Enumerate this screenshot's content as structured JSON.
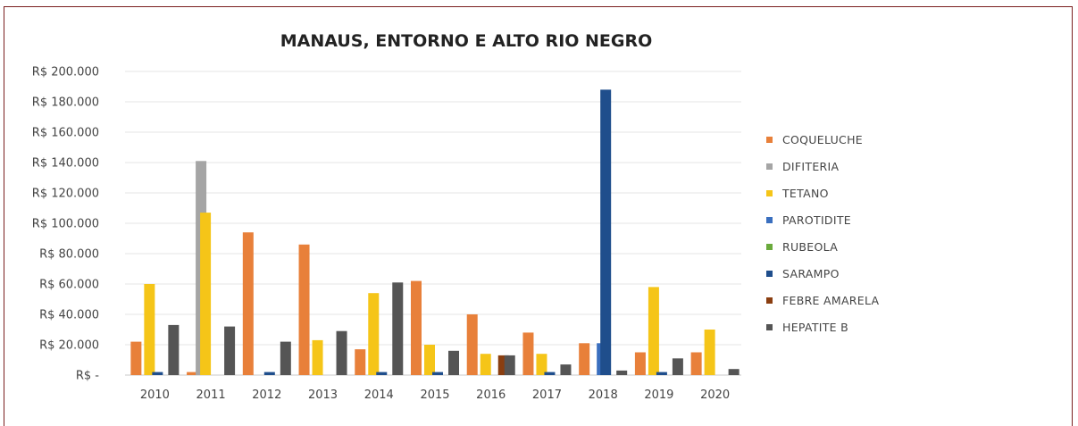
{
  "chart_data": {
    "type": "bar",
    "title": "MANAUS, ENTORNO E ALTO RIO NEGRO",
    "xlabel": "",
    "ylabel": "",
    "ylim": [
      0,
      200000
    ],
    "y_ticks": [
      0,
      20000,
      40000,
      60000,
      80000,
      100000,
      120000,
      140000,
      160000,
      180000,
      200000
    ],
    "y_tick_labels": [
      "R$ -",
      "R$ 20.000",
      "R$ 40.000",
      "R$ 60.000",
      "R$ 80.000",
      "R$ 100.000",
      "R$ 120.000",
      "R$ 140.000",
      "R$ 160.000",
      "R$ 180.000",
      "R$ 200.000"
    ],
    "grid": true,
    "legend_position": "right",
    "categories": [
      "2010",
      "2011",
      "2012",
      "2013",
      "2014",
      "2015",
      "2016",
      "2017",
      "2018",
      "2019",
      "2020"
    ],
    "series": [
      {
        "name": "COQUELUCHE",
        "color": "#e8803a",
        "values": [
          22000,
          2000,
          94000,
          86000,
          17000,
          62000,
          40000,
          28000,
          21000,
          15000,
          15000
        ]
      },
      {
        "name": "DIFITERIA",
        "color": "#a5a5a5",
        "values": [
          0,
          141000,
          0,
          0,
          0,
          0,
          0,
          0,
          0,
          0,
          0
        ]
      },
      {
        "name": "TETANO",
        "color": "#f5c518",
        "values": [
          60000,
          107000,
          0,
          23000,
          54000,
          20000,
          14000,
          14000,
          0,
          58000,
          30000
        ]
      },
      {
        "name": "PAROTIDITE",
        "color": "#3a6fbf",
        "values": [
          0,
          0,
          0,
          0,
          0,
          0,
          0,
          0,
          21000,
          0,
          0
        ]
      },
      {
        "name": "RUBEOLA",
        "color": "#6aaa3c",
        "values": [
          0,
          0,
          0,
          0,
          0,
          0,
          0,
          0,
          0,
          0,
          0
        ]
      },
      {
        "name": "SARAMPO",
        "color": "#1f4e8c",
        "values": [
          2000,
          0,
          2000,
          0,
          2000,
          2000,
          0,
          2000,
          188000,
          2000,
          0
        ]
      },
      {
        "name": "FEBRE AMARELA",
        "color": "#8a3e10",
        "values": [
          0,
          0,
          0,
          0,
          0,
          0,
          13000,
          0,
          0,
          0,
          0
        ]
      },
      {
        "name": "HEPATITE B",
        "color": "#555555",
        "values": [
          33000,
          32000,
          22000,
          29000,
          61000,
          16000,
          13000,
          7000,
          3000,
          11000,
          4000
        ]
      }
    ]
  }
}
